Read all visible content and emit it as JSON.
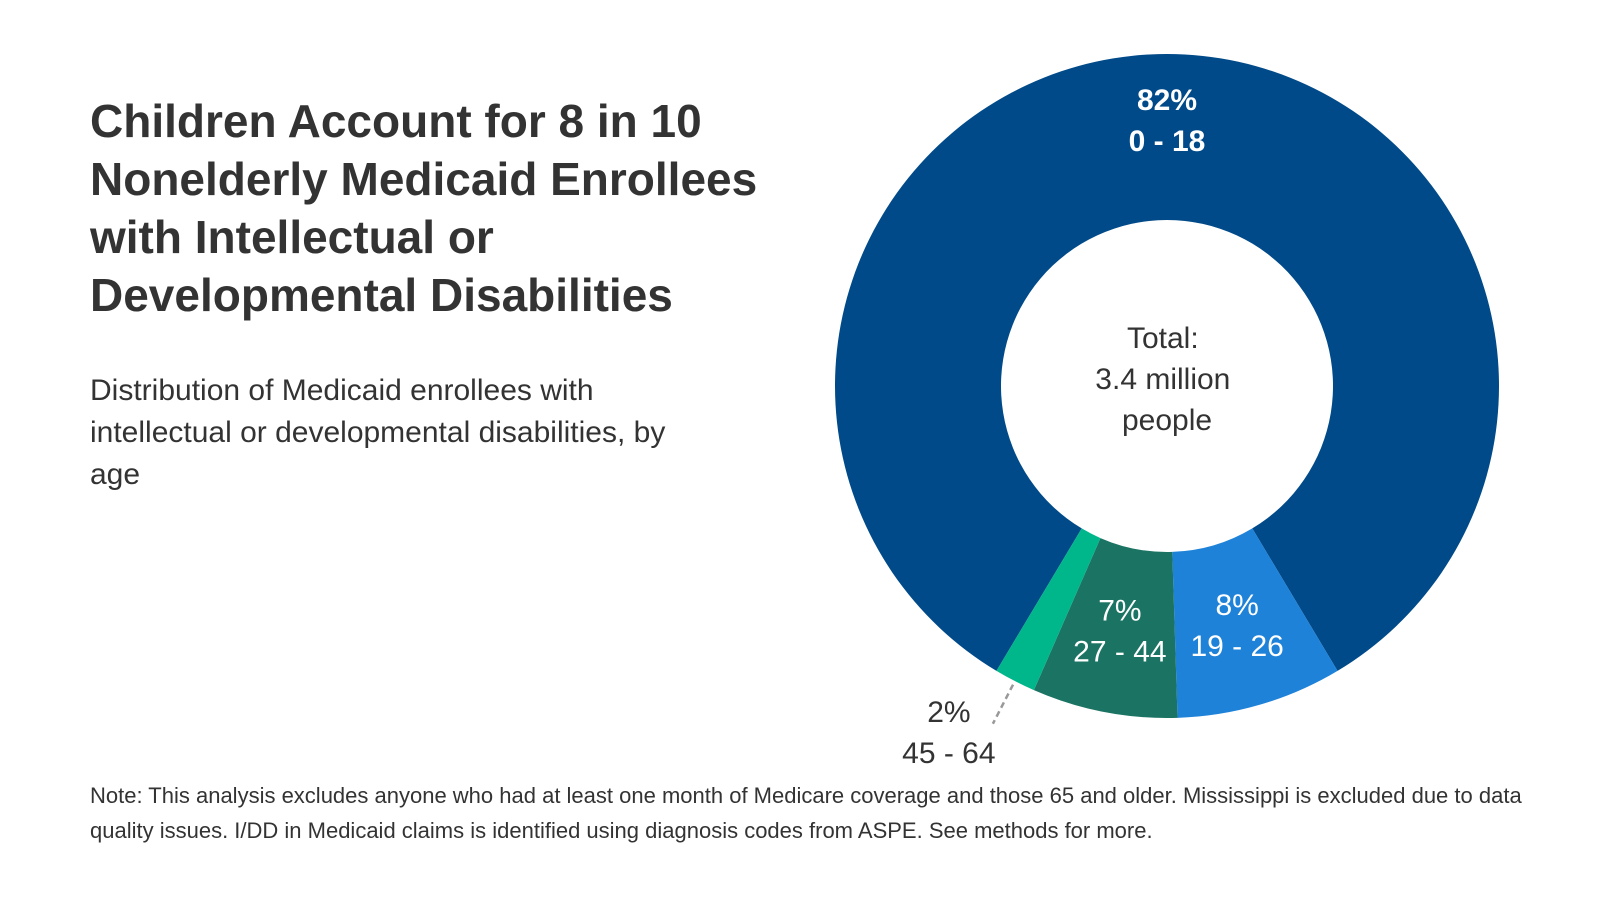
{
  "title": "Children Account for 8 in 10 Nonelderly Medicaid Enrollees with Intellectual or Developmental Disabilities",
  "subtitle": "Distribution of Medicaid enrollees with intellectual or developmental disabilities, by age",
  "note": "Note: This analysis excludes anyone who had at least one month of Medicare coverage and those 65 and older. Mississippi is excluded due to data quality issues. I/DD in Medicaid claims is identified using diagnosis codes from ASPE. See methods for more.",
  "chart_data": {
    "type": "pie",
    "donut": true,
    "center_label": [
      "Total:",
      "3.4 million",
      "people"
    ],
    "slices": [
      {
        "label": "0 - 18",
        "value": 82,
        "value_label": "82%",
        "color": "#004a89"
      },
      {
        "label": "19 - 26",
        "value": 8,
        "value_label": "8%",
        "color": "#1f82d9"
      },
      {
        "label": "27 - 44",
        "value": 7,
        "value_label": "7%",
        "color": "#1b7463"
      },
      {
        "label": "45 - 64",
        "value": 2,
        "value_label": "2%",
        "color": "#00b78b"
      }
    ],
    "legend": "none"
  }
}
